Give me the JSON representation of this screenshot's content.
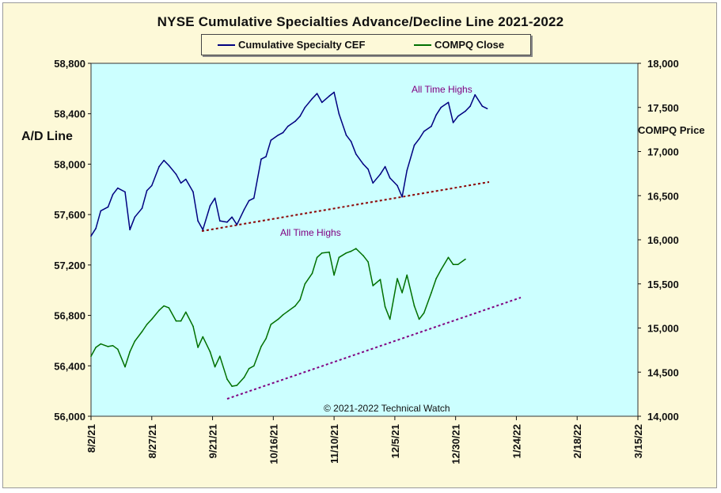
{
  "chart_data": {
    "type": "line",
    "title": "NYSE Cumulative  Specialties  Advance/Decline  Line  2021-2022",
    "ylabel_left": "A/D Line",
    "ylabel_right": "COMPQ Price",
    "ylim_left": [
      56000,
      58800
    ],
    "yticks_left": [
      "56,000",
      "56,400",
      "56,800",
      "57,200",
      "57,600",
      "58,000",
      "58,400",
      "58,800"
    ],
    "ylim_right": [
      14000,
      18000
    ],
    "yticks_right": [
      "14,000",
      "14,500",
      "15,000",
      "15,500",
      "16,000",
      "16,500",
      "17,000",
      "17,500",
      "18,000"
    ],
    "xlim": [
      "2021-08-02",
      "2022-03-15"
    ],
    "xticks": [
      "8/2/21",
      "8/27/21",
      "9/21/21",
      "10/16/21",
      "11/10/21",
      "12/5/21",
      "12/30/21",
      "1/24/22",
      "2/18/22",
      "3/15/22"
    ],
    "legend_position": "top-center",
    "series": [
      {
        "name": "Cumulative Specialty CEF",
        "axis": "left",
        "color": "#000080",
        "x": [
          "2021-08-02",
          "2021-08-04",
          "2021-08-06",
          "2021-08-09",
          "2021-08-11",
          "2021-08-13",
          "2021-08-16",
          "2021-08-18",
          "2021-08-20",
          "2021-08-23",
          "2021-08-25",
          "2021-08-27",
          "2021-08-30",
          "2021-09-01",
          "2021-09-03",
          "2021-09-06",
          "2021-09-08",
          "2021-09-10",
          "2021-09-13",
          "2021-09-15",
          "2021-09-17",
          "2021-09-20",
          "2021-09-22",
          "2021-09-24",
          "2021-09-27",
          "2021-09-29",
          "2021-10-01",
          "2021-10-04",
          "2021-10-06",
          "2021-10-08",
          "2021-10-11",
          "2021-10-13",
          "2021-10-15",
          "2021-10-18",
          "2021-10-20",
          "2021-10-22",
          "2021-10-25",
          "2021-10-27",
          "2021-10-29",
          "2021-11-01",
          "2021-11-03",
          "2021-11-05",
          "2021-11-08",
          "2021-11-10",
          "2021-11-12",
          "2021-11-15",
          "2021-11-17",
          "2021-11-19",
          "2021-11-22",
          "2021-11-24",
          "2021-11-26",
          "2021-11-29",
          "2021-12-01",
          "2021-12-03",
          "2021-12-06",
          "2021-12-08",
          "2021-12-10",
          "2021-12-13",
          "2021-12-15",
          "2021-12-17",
          "2021-12-20",
          "2021-12-22",
          "2021-12-24",
          "2021-12-27",
          "2021-12-29",
          "2021-12-31",
          "2022-01-03",
          "2022-01-05",
          "2022-01-07",
          "2022-01-10",
          "2022-01-12"
        ],
        "values": [
          57430,
          57490,
          57630,
          57660,
          57760,
          57810,
          57780,
          57480,
          57580,
          57650,
          57790,
          57830,
          57980,
          58030,
          57990,
          57920,
          57850,
          57880,
          57780,
          57550,
          57480,
          57670,
          57730,
          57550,
          57540,
          57580,
          57520,
          57640,
          57710,
          57730,
          58040,
          58060,
          58190,
          58230,
          58250,
          58300,
          58340,
          58380,
          58450,
          58520,
          58560,
          58490,
          58540,
          58570,
          58400,
          58230,
          58180,
          58080,
          58000,
          57960,
          57850,
          57920,
          57980,
          57890,
          57830,
          57740,
          57950,
          58150,
          58200,
          58260,
          58300,
          58390,
          58450,
          58490,
          58330,
          58380,
          58420,
          58460,
          58550,
          58460,
          58440
        ]
      },
      {
        "name": "COMPQ Close",
        "axis": "right",
        "color": "#007000",
        "x": [
          "2021-08-02",
          "2021-08-04",
          "2021-08-06",
          "2021-08-09",
          "2021-08-11",
          "2021-08-13",
          "2021-08-16",
          "2021-08-18",
          "2021-08-20",
          "2021-08-23",
          "2021-08-25",
          "2021-08-27",
          "2021-08-30",
          "2021-09-01",
          "2021-09-03",
          "2021-09-06",
          "2021-09-08",
          "2021-09-10",
          "2021-09-13",
          "2021-09-15",
          "2021-09-17",
          "2021-09-20",
          "2021-09-22",
          "2021-09-24",
          "2021-09-27",
          "2021-09-29",
          "2021-10-01",
          "2021-10-04",
          "2021-10-06",
          "2021-10-08",
          "2021-10-11",
          "2021-10-13",
          "2021-10-15",
          "2021-10-18",
          "2021-10-20",
          "2021-10-22",
          "2021-10-25",
          "2021-10-27",
          "2021-10-29",
          "2021-11-01",
          "2021-11-03",
          "2021-11-05",
          "2021-11-08",
          "2021-11-10",
          "2021-11-12",
          "2021-11-15",
          "2021-11-17",
          "2021-11-19",
          "2021-11-22",
          "2021-11-24",
          "2021-11-26",
          "2021-11-29",
          "2021-12-01",
          "2021-12-03",
          "2021-12-06",
          "2021-12-08",
          "2021-12-10",
          "2021-12-13",
          "2021-12-15",
          "2021-12-17",
          "2021-12-20",
          "2021-12-22",
          "2021-12-24",
          "2021-12-27",
          "2021-12-29",
          "2021-12-31",
          "2022-01-03"
        ],
        "values": [
          14680,
          14780,
          14820,
          14790,
          14800,
          14760,
          14560,
          14730,
          14850,
          14960,
          15040,
          15100,
          15200,
          15250,
          15230,
          15080,
          15080,
          15180,
          15020,
          14780,
          14900,
          14730,
          14560,
          14680,
          14420,
          14340,
          14350,
          14440,
          14540,
          14570,
          14790,
          14880,
          15040,
          15100,
          15150,
          15190,
          15250,
          15320,
          15500,
          15620,
          15800,
          15850,
          15860,
          15600,
          15800,
          15850,
          15870,
          15900,
          15820,
          15750,
          15480,
          15550,
          15240,
          15100,
          15560,
          15400,
          15600,
          15250,
          15100,
          15170,
          15400,
          15560,
          15660,
          15800,
          15720,
          15720,
          15780
        ]
      }
    ],
    "annotations": [
      "All Time Highs",
      "All Time Highs",
      "© 2021-2022  Technical Watch"
    ]
  }
}
